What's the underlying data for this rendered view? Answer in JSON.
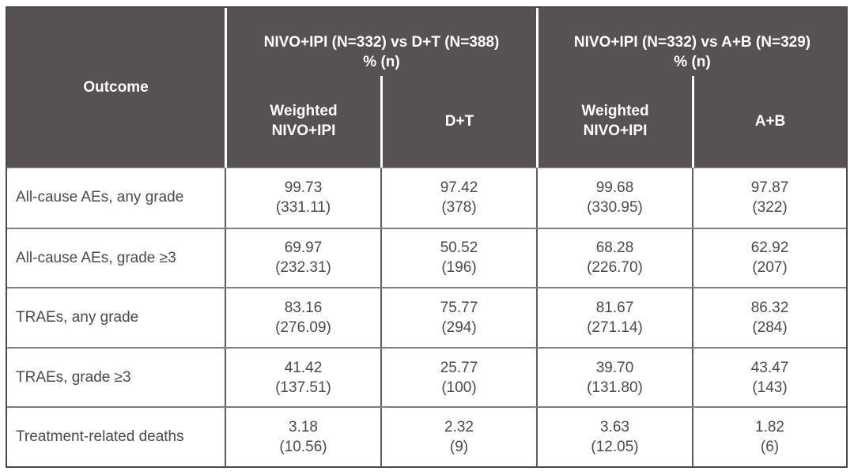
{
  "colors": {
    "header_bg": "#575252",
    "header_text": "#ffffff",
    "header_divider": "#ffffff",
    "outer_border": "#4c4848",
    "column_line": "#5c5c5c",
    "row_line": "#7f7f7f",
    "body_text": "#4a4a4a",
    "body_bg": "#ffffff"
  },
  "chart_data": {
    "type": "table",
    "header": {
      "outcome_label": "Outcome",
      "groups": [
        {
          "title": "NIVO+IPI (N=332) vs D+T (N=388)",
          "unit": "% (n)",
          "subcols": [
            "Weighted NIVO+IPI",
            "D+T"
          ]
        },
        {
          "title": "NIVO+IPI (N=332) vs A+B (N=329)",
          "unit": "% (n)",
          "subcols": [
            "Weighted NIVO+IPI",
            "A+B"
          ]
        }
      ]
    },
    "rows": [
      {
        "outcome": "All-cause AEs, any grade",
        "values": [
          {
            "pct": "99.73",
            "n": "(331.11)"
          },
          {
            "pct": "97.42",
            "n": "(378)"
          },
          {
            "pct": "99.68",
            "n": "(330.95)"
          },
          {
            "pct": "97.87",
            "n": "(322)"
          }
        ]
      },
      {
        "outcome": "All-cause AEs, grade ≥3",
        "values": [
          {
            "pct": "69.97",
            "n": "(232.31)"
          },
          {
            "pct": "50.52",
            "n": "(196)"
          },
          {
            "pct": "68.28",
            "n": "(226.70)"
          },
          {
            "pct": "62.92",
            "n": "(207)"
          }
        ]
      },
      {
        "outcome": "TRAEs, any grade",
        "values": [
          {
            "pct": "83.16",
            "n": "(276.09)"
          },
          {
            "pct": "75.77",
            "n": "(294)"
          },
          {
            "pct": "81.67",
            "n": "(271.14)"
          },
          {
            "pct": "86.32",
            "n": "(284)"
          }
        ]
      },
      {
        "outcome": "TRAEs, grade ≥3",
        "values": [
          {
            "pct": "41.42",
            "n": "(137.51)"
          },
          {
            "pct": "25.77",
            "n": "(100)"
          },
          {
            "pct": "39.70",
            "n": "(131.80)"
          },
          {
            "pct": "43.47",
            "n": "(143)"
          }
        ]
      },
      {
        "outcome": "Treatment-related deaths",
        "values": [
          {
            "pct": "3.18",
            "n": "(10.56)"
          },
          {
            "pct": "2.32",
            "n": "(9)"
          },
          {
            "pct": "3.63",
            "n": "(12.05)"
          },
          {
            "pct": "1.82",
            "n": "(6)"
          }
        ]
      }
    ]
  }
}
